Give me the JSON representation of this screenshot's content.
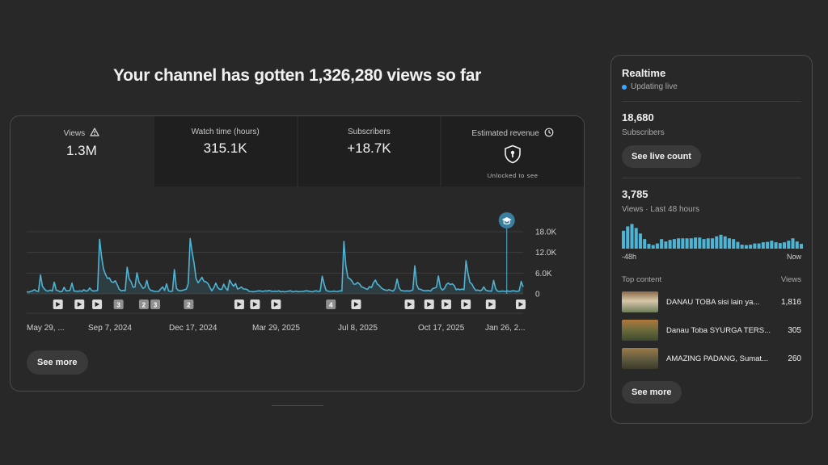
{
  "headline": "Your channel has gotten 1,326,280 views so far",
  "metrics": [
    {
      "label": "Views",
      "value": "1.3M",
      "icon": "warning-icon"
    },
    {
      "label": "Watch time (hours)",
      "value": "315.1K"
    },
    {
      "label": "Subscribers",
      "value": "+18.7K"
    },
    {
      "label": "Estimated revenue",
      "value": "",
      "icon": "clock-icon",
      "note": "Unlocked to see"
    }
  ],
  "chart_data": {
    "type": "line",
    "title": "",
    "xlabel": "",
    "ylabel": "",
    "y_ticks": [
      "0",
      "6.0K",
      "12.0K",
      "18.0K"
    ],
    "ylim": [
      0,
      18000
    ],
    "x_ticks": [
      "May 29, ...",
      "Sep 7, 2024",
      "Dec 17, 2024",
      "Mar 29, 2025",
      "Jul 8, 2025",
      "Oct 17, 2025",
      "Jan 26, 2..."
    ],
    "series": [
      {
        "values": [
          600,
          500,
          700,
          900,
          1200,
          800,
          700,
          5500,
          2200,
          1400,
          900,
          800,
          1100,
          800,
          3400,
          1100,
          900,
          600,
          700,
          1900,
          900,
          900,
          1000,
          3100,
          800,
          800,
          700,
          900,
          700,
          1200,
          800,
          900,
          1700,
          1000,
          800,
          900,
          1000,
          15800,
          10800,
          7200,
          5600,
          4500,
          4600,
          3500,
          3300,
          3800,
          2600,
          1300,
          900,
          1000,
          900,
          7700,
          4400,
          3500,
          1900,
          2000,
          6100,
          3400,
          2500,
          1600,
          1900,
          3900,
          1600,
          1000,
          900,
          700,
          700,
          700,
          1400,
          2000,
          1000,
          2900,
          900,
          700,
          800,
          7000,
          1600,
          1000,
          900,
          1000,
          1200,
          1300,
          3000,
          16000,
          12000,
          8800,
          4400,
          3200,
          4000,
          4800,
          3600,
          3500,
          3000,
          1900,
          900,
          1800,
          3100,
          1800,
          1300,
          1300,
          2800,
          1700,
          1000,
          4000,
          3000,
          2200,
          3000,
          1400,
          1600,
          2000,
          1400,
          1400,
          1200,
          700,
          700,
          600,
          700,
          800,
          900,
          800,
          700,
          900,
          800,
          1000,
          800,
          700,
          800,
          700,
          900,
          600,
          700,
          600,
          700,
          800,
          900,
          600,
          700,
          800,
          600,
          700,
          700,
          800,
          900,
          800,
          700,
          600,
          800,
          900,
          700,
          800,
          5100,
          2800,
          1000,
          800,
          700,
          700,
          800,
          700,
          700,
          900,
          800,
          15200,
          8200,
          4700,
          4400,
          3800,
          2800,
          2800,
          3300,
          2800,
          2000,
          1800,
          1500,
          1300,
          2100,
          1800,
          3200,
          4000,
          2800,
          2400,
          1700,
          1300,
          1100,
          1000,
          1200,
          1000,
          800,
          1500,
          4300,
          1800,
          1000,
          900,
          800,
          900,
          800,
          900,
          1200,
          8100,
          2600,
          1400,
          1300,
          1000,
          900,
          900,
          1000,
          800,
          1500,
          1700,
          1900,
          5200,
          1800,
          1100,
          1500,
          2700,
          3100,
          2700,
          2900,
          2400,
          1200,
          1400,
          1200,
          1400,
          1200,
          9600,
          5900,
          3300,
          2800,
          1700,
          1000,
          1100,
          900,
          1100,
          2000,
          1100,
          900,
          800,
          800,
          3900,
          1500,
          800,
          700,
          800,
          800,
          700,
          900,
          700,
          800,
          900,
          800,
          700,
          900,
          3600,
          2000
        ]
      }
    ],
    "video_markers": [
      {
        "at": 0.03,
        "label": ""
      },
      {
        "at": 0.075,
        "label": ""
      },
      {
        "at": 0.112,
        "label": ""
      },
      {
        "at": 0.157,
        "label": "3"
      },
      {
        "at": 0.21,
        "label": "2"
      },
      {
        "at": 0.234,
        "label": "3"
      },
      {
        "at": 0.304,
        "label": "2"
      },
      {
        "at": 0.41,
        "label": ""
      },
      {
        "at": 0.443,
        "label": ""
      },
      {
        "at": 0.487,
        "label": ""
      },
      {
        "at": 0.602,
        "label": "4"
      },
      {
        "at": 0.655,
        "label": ""
      },
      {
        "at": 0.767,
        "label": ""
      },
      {
        "at": 0.808,
        "label": ""
      },
      {
        "at": 0.844,
        "label": ""
      },
      {
        "at": 0.885,
        "label": ""
      },
      {
        "at": 0.937,
        "label": ""
      },
      {
        "at": 1.0,
        "label": ""
      }
    ],
    "milestone_at": 0.967,
    "line_color": "#4fb3d4",
    "grid": true
  },
  "see_more_main": "See more",
  "realtime": {
    "title": "Realtime",
    "status": "Updating live",
    "subscribers_value": "18,680",
    "subscribers_label": "Subscribers",
    "live_button": "See live count",
    "views_value": "3,785",
    "views_label": "Views · Last 48 hours",
    "bars": [
      0.45,
      0.56,
      0.62,
      0.52,
      0.38,
      0.24,
      0.12,
      0.09,
      0.13,
      0.24,
      0.18,
      0.22,
      0.24,
      0.26,
      0.26,
      0.26,
      0.26,
      0.28,
      0.28,
      0.24,
      0.26,
      0.26,
      0.31,
      0.35,
      0.31,
      0.26,
      0.24,
      0.17,
      0.1,
      0.09,
      0.1,
      0.13,
      0.13,
      0.16,
      0.17,
      0.2,
      0.16,
      0.14,
      0.16,
      0.2,
      0.26,
      0.18,
      0.12
    ],
    "axis_left": "-48h",
    "axis_right": "Now",
    "top_content_label": "Top content",
    "top_content_views_label": "Views",
    "items": [
      {
        "title": "DANAU TOBA sisi lain ya...",
        "views": "1,816"
      },
      {
        "title": "Danau Toba SYURGA TERS...",
        "views": "305"
      },
      {
        "title": "AMAZING PADANG, Sumat...",
        "views": "260"
      }
    ],
    "see_more": "See more"
  }
}
